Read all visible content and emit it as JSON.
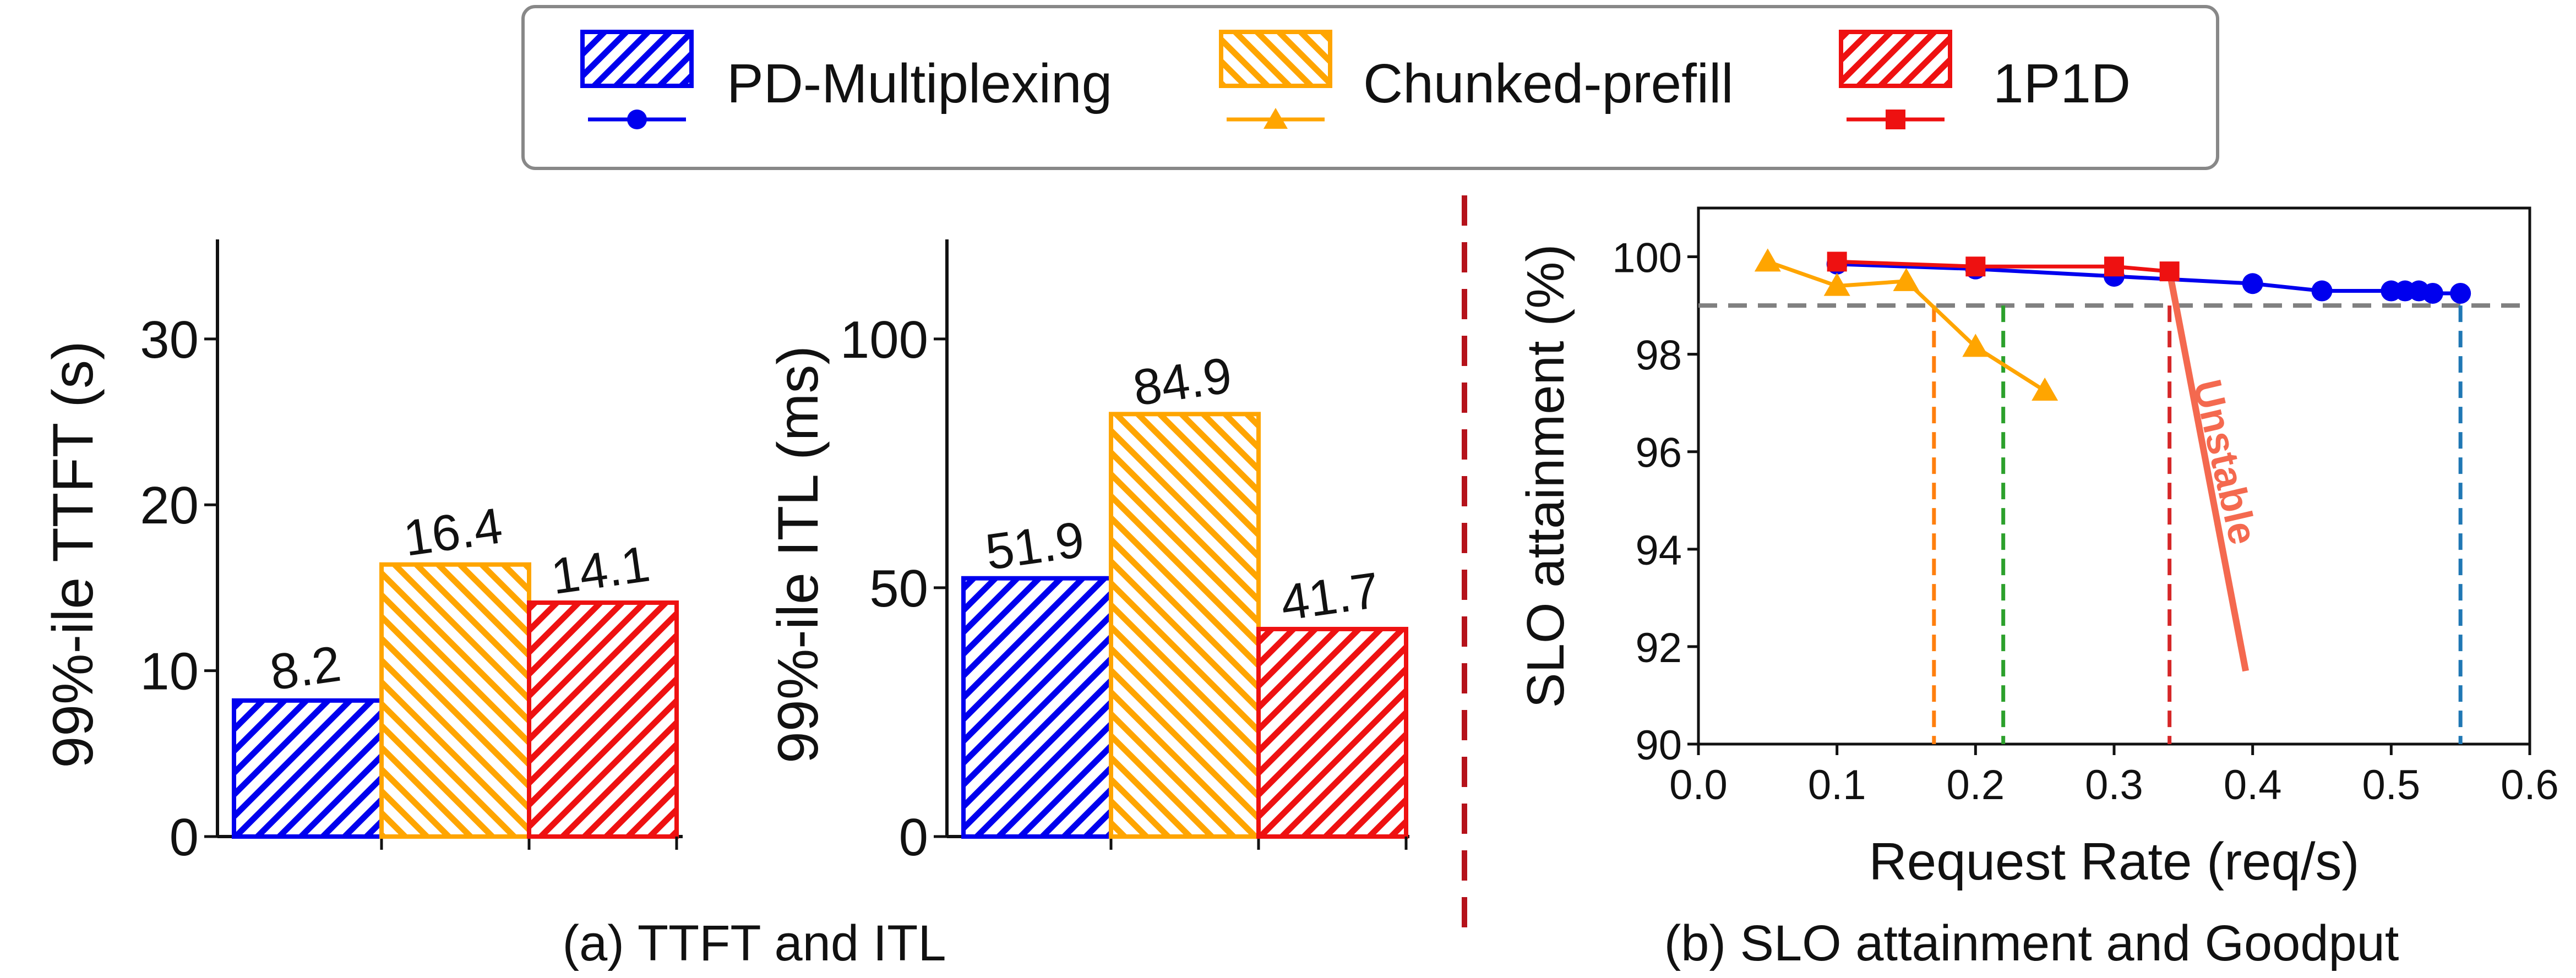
{
  "legend": {
    "entries": [
      {
        "label": "PD-Multiplexing",
        "color": "#0000ee",
        "marker": "circle"
      },
      {
        "label": "Chunked-prefill",
        "color": "#ffa500",
        "marker": "triangle"
      },
      {
        "label": "1P1D",
        "color": "#ee1111",
        "marker": "square"
      }
    ]
  },
  "captions": {
    "a": "(a) TTFT and ITL",
    "b": "(b) SLO attainment and Goodput"
  },
  "colors": {
    "blue": "#0000ee",
    "orange": "#ffa500",
    "red": "#ee1111",
    "divider": "#b5121b",
    "threshold": "#808080",
    "unstable": "#f4694f",
    "vline_orange": "#ff7f0e",
    "vline_green": "#2ca02c",
    "vline_red": "#d62728",
    "vline_blue": "#1f77b4"
  },
  "chart_data": [
    {
      "type": "bar",
      "title": "",
      "xlabel": "",
      "ylabel": "99%-ile TTFT (s)",
      "ylim": [
        0,
        36
      ],
      "yticks": [
        0,
        10,
        20,
        30
      ],
      "categories": [
        "PD-Multiplexing",
        "Chunked-prefill",
        "1P1D"
      ],
      "values": [
        8.2,
        16.4,
        14.1
      ],
      "value_labels": [
        "8.2",
        "16.4",
        "14.1"
      ],
      "colors": [
        "#0000ee",
        "#ffa500",
        "#ee1111"
      ]
    },
    {
      "type": "bar",
      "title": "",
      "xlabel": "",
      "ylabel": "99%-ile ITL (ms)",
      "ylim": [
        0,
        120
      ],
      "yticks": [
        0,
        50,
        100
      ],
      "categories": [
        "PD-Multiplexing",
        "Chunked-prefill",
        "1P1D"
      ],
      "values": [
        51.9,
        84.9,
        41.7
      ],
      "value_labels": [
        "51.9",
        "84.9",
        "41.7"
      ],
      "colors": [
        "#0000ee",
        "#ffa500",
        "#ee1111"
      ]
    },
    {
      "type": "line",
      "title": "",
      "xlabel": "Request Rate (req/s)",
      "ylabel": "SLO attainment (%)",
      "xlim": [
        0,
        0.6
      ],
      "ylim": [
        90,
        101
      ],
      "xticks": [
        "0.0",
        "0.1",
        "0.2",
        "0.3",
        "0.4",
        "0.5",
        "0.6"
      ],
      "yticks": [
        "90",
        "92",
        "94",
        "96",
        "98",
        "100"
      ],
      "threshold": 99,
      "series": [
        {
          "name": "PD-Multiplexing",
          "color": "#0000ee",
          "marker": "circle",
          "x": [
            0.1,
            0.2,
            0.3,
            0.4,
            0.45,
            0.5,
            0.51,
            0.52,
            0.53,
            0.55
          ],
          "y": [
            99.85,
            99.75,
            99.6,
            99.45,
            99.3,
            99.3,
            99.3,
            99.3,
            99.25,
            99.25
          ]
        },
        {
          "name": "Chunked-prefill",
          "color": "#ffa500",
          "marker": "triangle",
          "x": [
            0.05,
            0.1,
            0.15,
            0.2,
            0.25
          ],
          "y": [
            99.9,
            99.4,
            99.5,
            98.15,
            97.25
          ]
        },
        {
          "name": "1P1D",
          "color": "#ee1111",
          "marker": "square",
          "x": [
            0.1,
            0.2,
            0.3,
            0.34
          ],
          "y": [
            99.9,
            99.8,
            99.8,
            99.7
          ]
        }
      ],
      "goodput_lines": [
        {
          "x": 0.17,
          "color": "#ff7f0e"
        },
        {
          "x": 0.22,
          "color": "#2ca02c"
        },
        {
          "x": 0.34,
          "color": "#d62728"
        },
        {
          "x": 0.55,
          "color": "#1f77b4"
        }
      ],
      "annotation": {
        "text": "Unstable",
        "line": {
          "x1": 0.34,
          "y1": 99.7,
          "x2": 0.395,
          "y2": 91.5
        }
      }
    }
  ]
}
